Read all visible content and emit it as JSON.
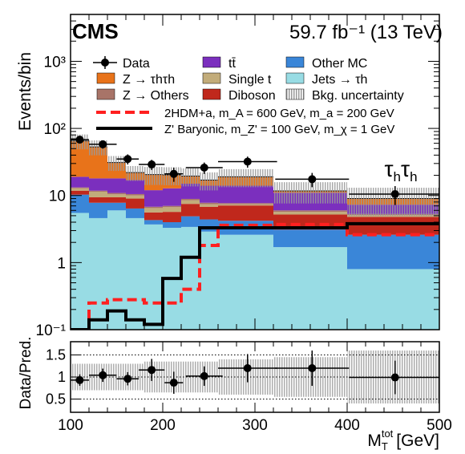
{
  "header": {
    "experiment": "CMS",
    "lumi_text": "59.7 fb⁻¹ (13 TeV)"
  },
  "channel_label": "τhτh",
  "colors": {
    "ztautau": "#E8731A",
    "zothers": "#A87468",
    "ttbar": "#7B2FBE",
    "singlet": "#C2AC7A",
    "diboson": "#C0281C",
    "othermc": "#3A86D8",
    "jets_tau": "#98DCE4",
    "sig_2hdma": "#FF2020",
    "sig_zprime": "#000000",
    "bkg_unc_fill": "#B5B5B5"
  },
  "chart_data": [
    {
      "type": "bar",
      "stacked": true,
      "log_y": true,
      "xlabel": "M_T^tot [GeV]",
      "ylabel": "Events/bin",
      "xlim": [
        100,
        500
      ],
      "ylim": [
        0.1,
        5000
      ],
      "x_ticks": [
        100,
        200,
        300,
        400,
        500
      ],
      "y_ticks": [
        "10⁻¹",
        "1",
        "10",
        "10²",
        "10³"
      ],
      "bin_edges": [
        100,
        120,
        140,
        160,
        180,
        200,
        220,
        240,
        260,
        280,
        320,
        400,
        500
      ],
      "series": [
        {
          "name": "Jets → τh",
          "key": "jets_tau",
          "values": [
            5.5,
            4.6,
            6.0,
            4.6,
            3.7,
            3.3,
            3.4,
            2.9,
            2.6,
            2.6,
            1.7,
            0.8
          ]
        },
        {
          "name": "Other MC",
          "key": "othermc",
          "values": [
            4.8,
            3.2,
            1.8,
            1.8,
            0.6,
            0.7,
            1.5,
            1.5,
            1.6,
            1.6,
            1.4,
            1.8
          ]
        },
        {
          "name": "Diboson",
          "key": "diboson",
          "values": [
            1.5,
            1.6,
            1.6,
            2.6,
            1.3,
            1.7,
            2.6,
            2.4,
            2.9,
            2.9,
            2.1,
            2.2
          ]
        },
        {
          "name": "Single t",
          "key": "singlet",
          "values": [
            1.0,
            2.0,
            1.0,
            1.0,
            0.9,
            1.0,
            1.0,
            0.6,
            0.3,
            0.3,
            0.5,
            0.3
          ]
        },
        {
          "name": "Z → Others",
          "key": "zothers",
          "values": [
            0.4,
            0.4,
            0.5,
            0.5,
            0.3,
            0.3,
            0.4,
            0.4,
            0.3,
            0.3,
            0.3,
            0.2
          ]
        },
        {
          "name": "tt̄",
          "key": "ttbar",
          "values": [
            5.8,
            6.2,
            7.1,
            6.5,
            5.2,
            5.8,
            6.1,
            6.2,
            6.3,
            6.3,
            5.0,
            2.0
          ]
        },
        {
          "name": "Z → τhτh",
          "key": "ztautau",
          "values": [
            46,
            35,
            13,
            5,
            8.5,
            7.5,
            4.5,
            3,
            5,
            5,
            0.7,
            1.7
          ]
        }
      ],
      "bkg_uncertainty": [
        0.25,
        0.25,
        0.25,
        0.25,
        0.3,
        0.3,
        0.3,
        0.3,
        0.3,
        0.3,
        0.35,
        0.45
      ],
      "data_points": [
        {
          "x": 110,
          "y": 68,
          "xerr": 10,
          "yerr": 8
        },
        {
          "x": 135,
          "y": 58,
          "xerr": 15,
          "yerr": 8
        },
        {
          "x": 162,
          "y": 35,
          "xerr": 12,
          "yerr": 6
        },
        {
          "x": 188,
          "y": 29,
          "xerr": 14,
          "yerr": 5
        },
        {
          "x": 212,
          "y": 21,
          "xerr": 10,
          "yerr": 5
        },
        {
          "x": 245,
          "y": 26,
          "xerr": 20,
          "yerr": 5
        },
        {
          "x": 292,
          "y": 32,
          "xerr": 32,
          "yerr": 6
        },
        {
          "x": 362,
          "y": 17.5,
          "xerr": 40,
          "yerr": 4.2
        },
        {
          "x": 452,
          "y": 10.5,
          "xerr": 50,
          "yerr": 3.3
        }
      ],
      "signal_lines": [
        {
          "name": "2HDM+a, m_A = 600 GeV, m_a = 200 GeV",
          "key": "sig_2hdma",
          "style": "dashed",
          "values": [
            0.1,
            0.25,
            0.28,
            0.28,
            0.25,
            0.25,
            0.4,
            1.8,
            3.6,
            3.6,
            3.7,
            2.6
          ]
        },
        {
          "name": "Z' Baryonic, m_Z' = 100 GeV, m_χ = 1 GeV",
          "key": "sig_zprime",
          "style": "solid",
          "values": [
            0.1,
            0.14,
            0.19,
            0.14,
            0.12,
            0.58,
            1.2,
            3.3,
            3.3,
            3.3,
            3.3,
            3.8
          ]
        }
      ],
      "legend": {
        "position": "top",
        "entries": [
          "Data",
          "tt̄",
          "Other MC",
          "Z → τhτh",
          "Single t",
          "Jets → τh",
          "Z → Others",
          "Diboson",
          "Bkg. uncertainty"
        ]
      }
    },
    {
      "type": "scatter",
      "xlabel": "M_T^tot [GeV]",
      "ylabel": "Data/Pred.",
      "xlim": [
        100,
        500
      ],
      "ylim": [
        0.2,
        1.8
      ],
      "y_ticks": [
        0.5,
        1,
        1.5
      ],
      "x_ticks": [
        100,
        200,
        300,
        400,
        500
      ],
      "grid": true,
      "points": [
        {
          "x": 110,
          "y": 0.93,
          "xerr": 10,
          "yerr": 0.13
        },
        {
          "x": 135,
          "y": 1.04,
          "xerr": 15,
          "yerr": 0.15
        },
        {
          "x": 162,
          "y": 0.96,
          "xerr": 12,
          "yerr": 0.15
        },
        {
          "x": 188,
          "y": 1.16,
          "xerr": 14,
          "yerr": 0.25
        },
        {
          "x": 212,
          "y": 0.87,
          "xerr": 10,
          "yerr": 0.25
        },
        {
          "x": 245,
          "y": 1.02,
          "xerr": 20,
          "yerr": 0.22
        },
        {
          "x": 292,
          "y": 1.2,
          "xerr": 32,
          "yerr": 0.32
        },
        {
          "x": 362,
          "y": 1.2,
          "xerr": 40,
          "yerr": 0.4
        },
        {
          "x": 452,
          "y": 0.99,
          "xerr": 50,
          "yerr": 0.38
        }
      ],
      "unc_band": [
        0.3,
        0.3,
        0.3,
        0.3,
        0.35,
        0.35,
        0.35,
        0.35,
        0.4,
        0.4,
        0.45,
        0.6
      ]
    }
  ]
}
